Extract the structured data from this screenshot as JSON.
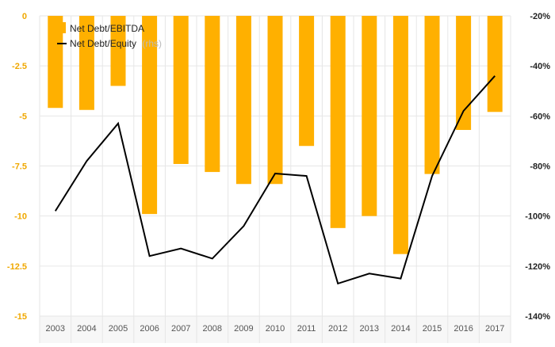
{
  "colors": {
    "bar": "#FFB000",
    "line": "#000000",
    "grid": "#E6E6E6",
    "axis_band": "#F7F7F7",
    "left_tick": "#F0A800",
    "right_tick": "#222222",
    "x_tick": "#555555",
    "legend_rhs": "#BBBBBB"
  },
  "legend": {
    "items": [
      {
        "label": "Net Debt/EBITDA",
        "swatch": "bar-icon"
      },
      {
        "label": "Net Debt/Equity",
        "suffix": "(rhs)",
        "swatch": "line-icon"
      }
    ],
    "placement": "top-left"
  },
  "chart_data": {
    "type": "bar",
    "categories": [
      "2003",
      "2004",
      "2005",
      "2006",
      "2007",
      "2008",
      "2009",
      "2010",
      "2011",
      "2012",
      "2013",
      "2014",
      "2015",
      "2016",
      "2017"
    ],
    "series": [
      {
        "name": "Net Debt/EBITDA",
        "type": "bar",
        "axis": "left",
        "values": [
          -4.6,
          -4.7,
          -3.5,
          -9.9,
          -7.4,
          -7.8,
          -8.4,
          -8.4,
          -6.5,
          -10.6,
          -10.0,
          -11.9,
          -7.9,
          -5.7,
          -4.8
        ]
      },
      {
        "name": "Net Debt/Equity",
        "type": "line",
        "axis": "right",
        "values": [
          -98,
          -78,
          -63,
          -116,
          -113,
          -117,
          -104,
          -83,
          -84,
          -127,
          -123,
          -125,
          -84,
          -58,
          -44
        ]
      }
    ],
    "y_left": {
      "range": [
        -15,
        0
      ],
      "ticks": [
        0,
        -2.5,
        -5,
        -7.5,
        -10,
        -12.5,
        -15
      ],
      "tick_labels": [
        "0",
        "-2.5",
        "-5",
        "-7.5",
        "-10",
        "-12.5",
        "-15"
      ]
    },
    "y_right": {
      "range": [
        -140,
        -20
      ],
      "ticks": [
        -20,
        -40,
        -60,
        -80,
        -100,
        -120,
        -140
      ],
      "tick_labels": [
        "-20%",
        "-40%",
        "-60%",
        "-80%",
        "-100%",
        "-120%",
        "-140%"
      ]
    },
    "grid": true
  }
}
